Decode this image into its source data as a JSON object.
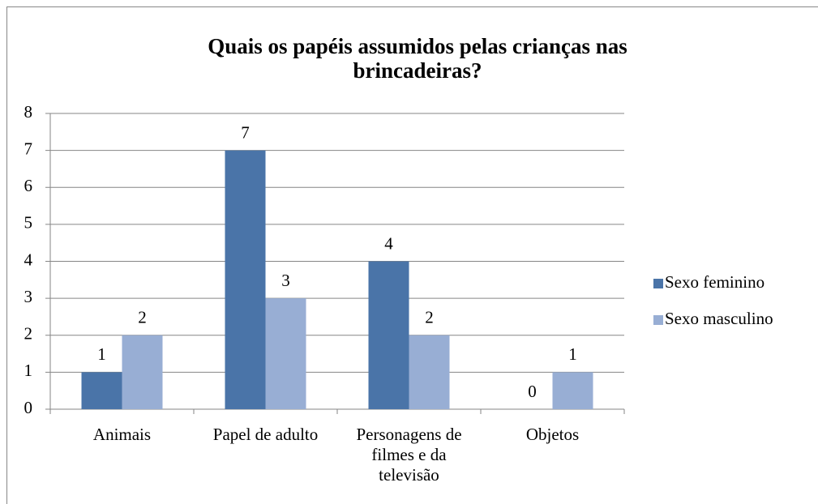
{
  "chart_data": {
    "type": "bar",
    "title": "Quais os papéis assumidos pelas crianças nas brincadeiras?",
    "categories": [
      "Animais",
      "Papel de adulto",
      "Personagens de filmes e da televisão",
      "Objetos"
    ],
    "series": [
      {
        "name": "Sexo feminino",
        "color": "#4a74a8",
        "values": [
          1,
          7,
          4,
          0
        ]
      },
      {
        "name": "Sexo masculino",
        "color": "#98aed4",
        "values": [
          2,
          3,
          2,
          1
        ]
      }
    ],
    "ylim": [
      0,
      8
    ],
    "yticks": [
      0,
      1,
      2,
      3,
      4,
      5,
      6,
      7,
      8
    ],
    "grid": true,
    "legend": "right"
  }
}
